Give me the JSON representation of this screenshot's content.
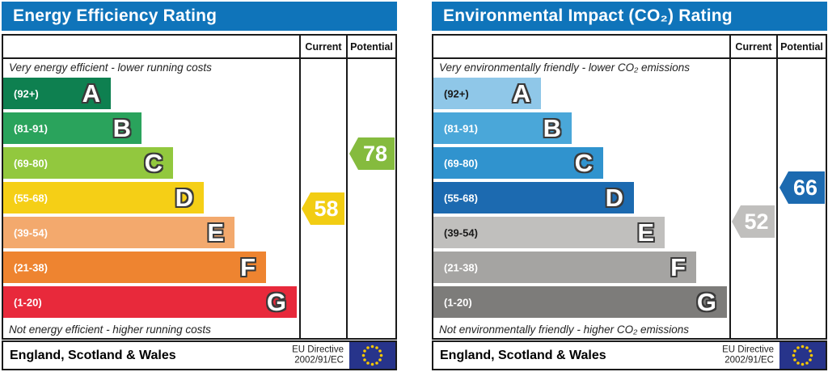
{
  "eu_flag": {
    "field_color": "#27348b",
    "star_color": "#f7c800"
  },
  "chart_data": [
    {
      "type": "bar",
      "title": "Energy Efficiency Rating",
      "title_bar_color": "#0f74ba",
      "columns": {
        "current": "Current",
        "potential": "Potential"
      },
      "top_caption": "Very energy efficient - lower running costs",
      "bottom_caption": "Not energy efficient - higher running costs",
      "bands": [
        {
          "letter": "A",
          "range_label": "(92+)",
          "min": 92,
          "max": 100,
          "color": "#0e8050",
          "label_color": "#ffffff"
        },
        {
          "letter": "B",
          "range_label": "(81-91)",
          "min": 81,
          "max": 91,
          "color": "#2aa35c",
          "label_color": "#ffffff"
        },
        {
          "letter": "C",
          "range_label": "(69-80)",
          "min": 69,
          "max": 80,
          "color": "#92c83e",
          "label_color": "#ffffff"
        },
        {
          "letter": "D",
          "range_label": "(55-68)",
          "min": 55,
          "max": 68,
          "color": "#f5cf16",
          "label_color": "#ffffff"
        },
        {
          "letter": "E",
          "range_label": "(39-54)",
          "min": 39,
          "max": 54,
          "color": "#f3a96d",
          "label_color": "#ffffff"
        },
        {
          "letter": "F",
          "range_label": "(21-38)",
          "min": 21,
          "max": 38,
          "color": "#ee8430",
          "label_color": "#ffffff"
        },
        {
          "letter": "G",
          "range_label": "(1-20)",
          "min": 1,
          "max": 20,
          "color": "#e8293b",
          "label_color": "#ffffff"
        }
      ],
      "current": {
        "value": 58,
        "color": "#f2cd13"
      },
      "potential": {
        "value": 78,
        "color": "#85bb3e"
      },
      "footer": {
        "region": "England, Scotland & Wales",
        "directive_line1": "EU Directive",
        "directive_line2": "2002/91/EC"
      }
    },
    {
      "type": "bar",
      "title": "Environmental Impact (CO₂) Rating",
      "title_bar_color": "#0f74ba",
      "columns": {
        "current": "Current",
        "potential": "Potential"
      },
      "top_caption": "Very environmentally friendly - lower CO₂ emissions",
      "bottom_caption": "Not environmentally friendly - higher CO₂ emissions",
      "bands": [
        {
          "letter": "A",
          "range_label": "(92+)",
          "min": 92,
          "max": 100,
          "color": "#8fc7e8",
          "label_color": "#1a1a1a"
        },
        {
          "letter": "B",
          "range_label": "(81-91)",
          "min": 81,
          "max": 91,
          "color": "#4aa7d9",
          "label_color": "#ffffff"
        },
        {
          "letter": "C",
          "range_label": "(69-80)",
          "min": 69,
          "max": 80,
          "color": "#3093ce",
          "label_color": "#ffffff"
        },
        {
          "letter": "D",
          "range_label": "(55-68)",
          "min": 55,
          "max": 68,
          "color": "#1c6ab0",
          "label_color": "#ffffff"
        },
        {
          "letter": "E",
          "range_label": "(39-54)",
          "min": 39,
          "max": 54,
          "color": "#c0bfbd",
          "label_color": "#1a1a1a"
        },
        {
          "letter": "F",
          "range_label": "(21-38)",
          "min": 21,
          "max": 38,
          "color": "#a5a4a2",
          "label_color": "#ffffff"
        },
        {
          "letter": "G",
          "range_label": "(1-20)",
          "min": 1,
          "max": 20,
          "color": "#7d7c7a",
          "label_color": "#ffffff"
        }
      ],
      "current": {
        "value": 52,
        "color": "#c0bfbd"
      },
      "potential": {
        "value": 66,
        "color": "#1c6ab0"
      },
      "footer": {
        "region": "England, Scotland & Wales",
        "directive_line1": "EU Directive",
        "directive_line2": "2002/91/EC"
      }
    }
  ]
}
